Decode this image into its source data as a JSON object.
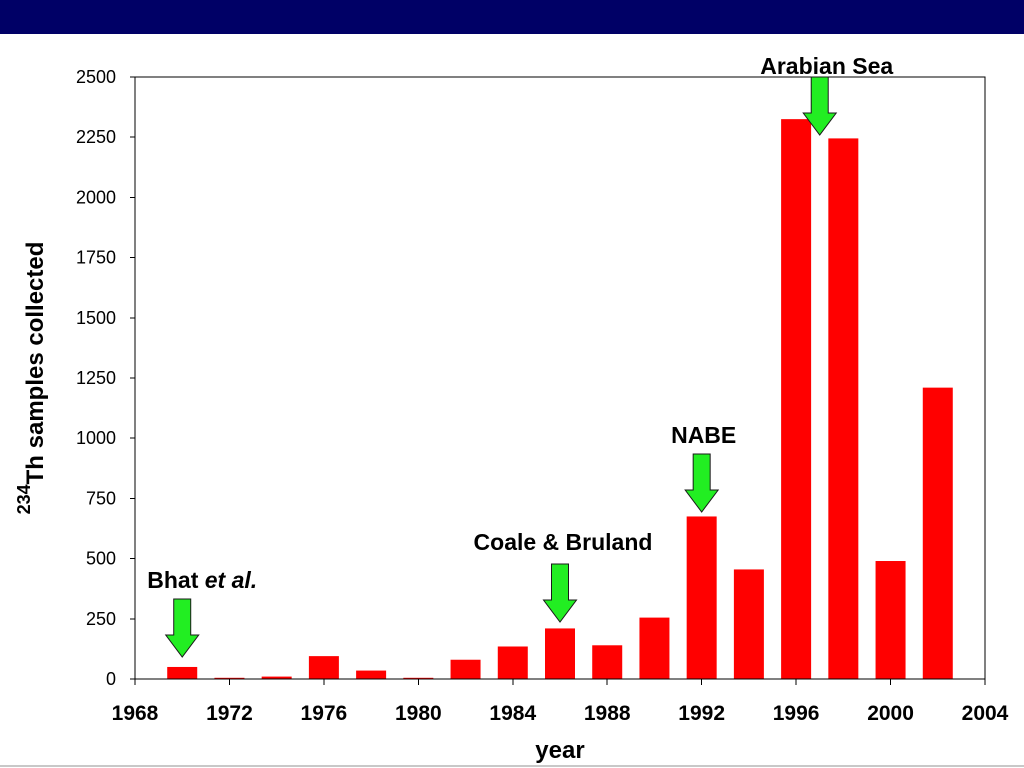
{
  "slide": {
    "header_color": "#000066"
  },
  "chart_data": {
    "type": "bar",
    "x": [
      1970,
      1972,
      1974,
      1976,
      1978,
      1980,
      1982,
      1984,
      1986,
      1988,
      1990,
      1992,
      1994,
      1996,
      1998,
      2000,
      2002
    ],
    "values": [
      50,
      5,
      10,
      95,
      35,
      5,
      80,
      135,
      210,
      140,
      255,
      675,
      455,
      2325,
      2245,
      490,
      1210
    ],
    "xlabel": "year",
    "ylabel": {
      "superscript": "234",
      "text": "Th samples collected"
    },
    "xlim": [
      1968,
      2004
    ],
    "ylim": [
      0,
      2500
    ],
    "xticks": [
      1968,
      1972,
      1976,
      1980,
      1984,
      1988,
      1992,
      1996,
      2000,
      2004
    ],
    "yticks": [
      0,
      250,
      500,
      750,
      1000,
      1250,
      1500,
      1750,
      2000,
      2250,
      2500
    ],
    "grid": false,
    "bar_color": "#ff0000",
    "annotation_arrow_color": "#22ee22",
    "annotations": [
      {
        "label": "Arabian Sea",
        "x": 1997
      },
      {
        "label": "NABE",
        "x": 1992
      },
      {
        "label": "Coale & Bruland",
        "x": 1986
      },
      {
        "label": "Bhat",
        "label_italic": "et al.",
        "x": 1970
      }
    ]
  }
}
